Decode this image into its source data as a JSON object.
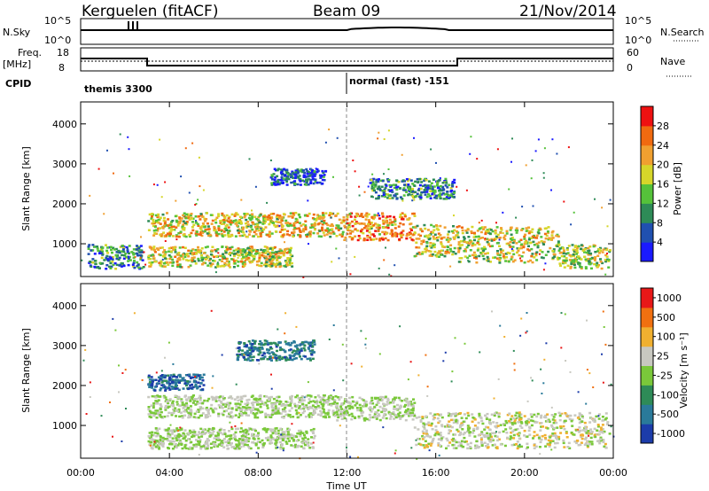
{
  "header": {
    "radar": "Kerguelen (fitACF)",
    "beam": "Beam 09",
    "date": "21/Nov/2014"
  },
  "top_panels": {
    "nsky_label": "N.Sky",
    "nsky_ticks": [
      "10^5",
      "10^0"
    ],
    "nsearch_label": "N.Search",
    "freq_label_1": "Freq.",
    "freq_label_2": "[MHz]",
    "freq_ticks": [
      "18",
      "8"
    ],
    "nave_ticks": [
      "60",
      "0"
    ],
    "nave_label": "Nave",
    "cpid_label": "CPID",
    "cpid_1": "themis 3300",
    "cpid_2": "normal (fast) -151"
  },
  "chart_data": [
    {
      "type": "heatmap",
      "panel": "power",
      "ylabel": "Slant Range [km]",
      "xlabel": "Time UT",
      "x_ticks": [
        "00:00",
        "04:00",
        "08:00",
        "12:00",
        "16:00",
        "20:00",
        "00:00"
      ],
      "xlim": [
        0,
        24
      ],
      "y_ticks": [
        1000,
        2000,
        3000,
        4000
      ],
      "ylim": [
        180,
        4550
      ],
      "colorbar": {
        "label": "Power [dB]",
        "ticks": [
          "4",
          "8",
          "12",
          "16",
          "20",
          "24",
          "28"
        ],
        "range": [
          0,
          30
        ],
        "colors": [
          "#1a1aff",
          "#2050b0",
          "#2e8b57",
          "#55c23a",
          "#d6d62a",
          "#f0a030",
          "#f06a10",
          "#ee1111"
        ]
      },
      "bands": [
        {
          "t0": 0.3,
          "t1": 2.8,
          "center": 700,
          "width": 300,
          "level": 0.3
        },
        {
          "t0": 3.0,
          "t1": 9.5,
          "center": 700,
          "width": 260,
          "level": 0.55
        },
        {
          "t0": 3.0,
          "t1": 11.8,
          "center": 1500,
          "width": 300,
          "level": 0.6
        },
        {
          "t0": 11.8,
          "t1": 15.0,
          "center": 1450,
          "width": 340,
          "level": 0.72
        },
        {
          "t0": 15.0,
          "t1": 17.0,
          "center": 1100,
          "width": 400,
          "level": 0.55
        },
        {
          "t0": 17.0,
          "t1": 21.5,
          "center": 1000,
          "width": 450,
          "level": 0.55
        },
        {
          "t0": 21.5,
          "t1": 23.8,
          "center": 700,
          "width": 300,
          "level": 0.5
        },
        {
          "t0": 8.5,
          "t1": 11.0,
          "center": 2700,
          "width": 200,
          "level": 0.2
        },
        {
          "t0": 13.0,
          "t1": 16.8,
          "center": 2400,
          "width": 250,
          "level": 0.3
        }
      ]
    },
    {
      "type": "heatmap",
      "panel": "velocity",
      "ylabel": "Slant Range [km]",
      "xlabel": "Time UT",
      "x_ticks": [
        "00:00",
        "04:00",
        "08:00",
        "12:00",
        "16:00",
        "20:00",
        "00:00"
      ],
      "xlim": [
        0,
        24
      ],
      "y_ticks": [
        1000,
        2000,
        3000,
        4000
      ],
      "ylim": [
        180,
        4550
      ],
      "colorbar": {
        "label": "Velocity [m s⁻¹]",
        "ticks": [
          "1000",
          "500",
          "100",
          "25",
          "-25",
          "-100",
          "-500",
          "-1000"
        ],
        "colors": [
          "#1c3caa",
          "#2a7a9a",
          "#2e8b57",
          "#7ac83a",
          "#c8c8c0",
          "#f0b030",
          "#f07010",
          "#e81818"
        ]
      },
      "bands": [
        {
          "t0": 3.0,
          "t1": 11.5,
          "center": 1500,
          "width": 280,
          "level": 0.0
        },
        {
          "t0": 3.0,
          "t1": 10.5,
          "center": 700,
          "width": 260,
          "level": 0.0
        },
        {
          "t0": 11.5,
          "t1": 15.0,
          "center": 1450,
          "width": 300,
          "level": 0.0
        },
        {
          "t0": 15.0,
          "t1": 23.8,
          "center": 900,
          "width": 450,
          "level": 0.1
        },
        {
          "t0": 3.0,
          "t1": 5.5,
          "center": 2100,
          "width": 200,
          "level": -0.7
        },
        {
          "t0": 7.0,
          "t1": 10.5,
          "center": 2900,
          "width": 250,
          "level": -0.6
        }
      ]
    }
  ]
}
